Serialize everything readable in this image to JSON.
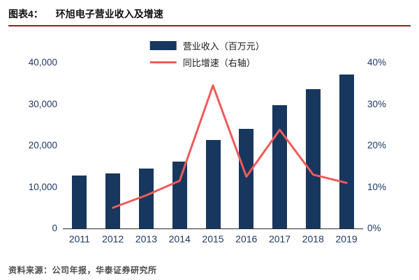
{
  "header": {
    "prefix": "图表4：",
    "title": "环旭电子营业收入及增速"
  },
  "colors": {
    "bar": "#17375E",
    "line": "#F05A5A",
    "header_rule": "#8E1F26",
    "axis_label": "#1F3864",
    "footer_text": "#4D4D4D"
  },
  "footer": {
    "source": "资料来源：公司年报，华泰证券研究所"
  },
  "chart_data": {
    "type": "bar",
    "title": "环旭电子营业收入及增速",
    "categories": [
      "2011",
      "2012",
      "2013",
      "2014",
      "2015",
      "2016",
      "2017",
      "2018",
      "2019"
    ],
    "series": [
      {
        "name": "营业收入（百万元）",
        "type": "bar",
        "axis": "left",
        "color": "#17375E",
        "values": [
          12700,
          13300,
          14400,
          16100,
          21300,
          24000,
          29700,
          33600,
          37200
        ]
      },
      {
        "name": "同比增速（右轴）",
        "type": "line",
        "axis": "right",
        "color": "#F05A5A",
        "values": [
          null,
          5,
          8,
          11.5,
          34.5,
          12.5,
          23.8,
          13,
          11
        ]
      }
    ],
    "left_axis": {
      "min": 0,
      "max": 40000,
      "ticks_bottom_to_top": [
        "0",
        "10,000",
        "20,000",
        "30,000",
        "40,000"
      ]
    },
    "right_axis": {
      "min": 0,
      "max": 40,
      "ticks_bottom_to_top": [
        "0%",
        "10%",
        "20%",
        "30%",
        "40%"
      ]
    },
    "grid": false,
    "legend_position": "top-center"
  }
}
